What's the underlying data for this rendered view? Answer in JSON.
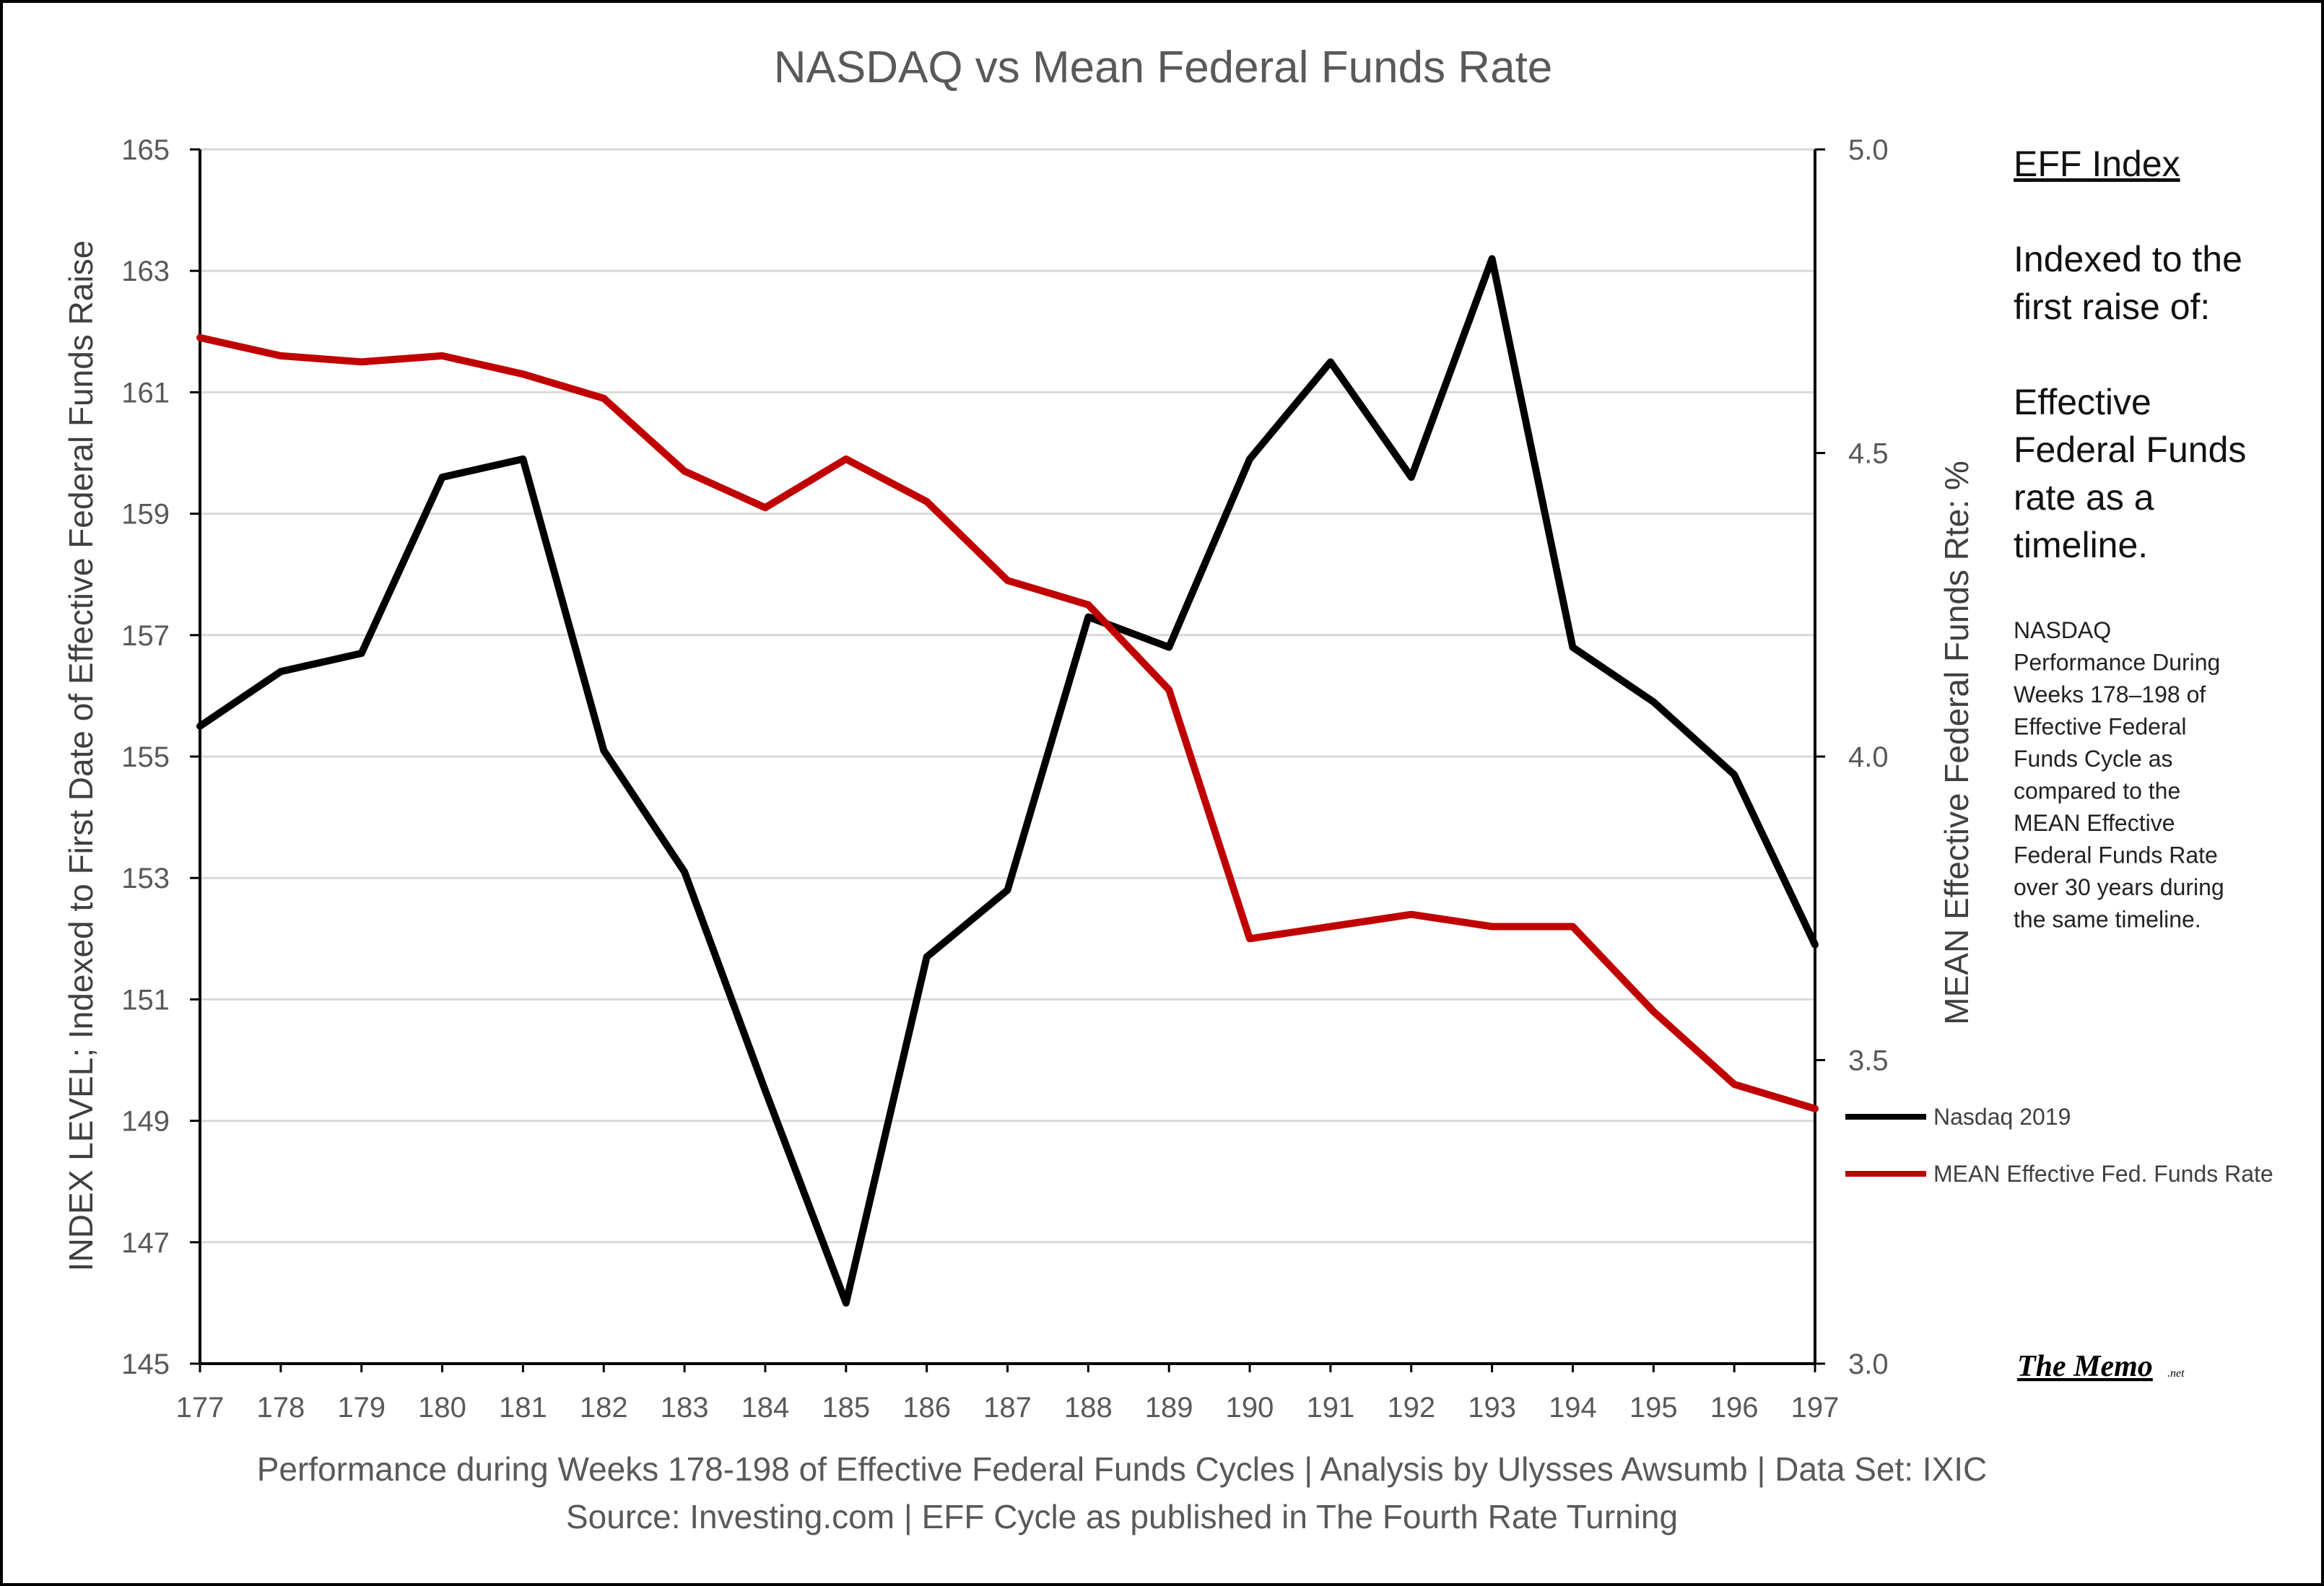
{
  "chart_data": {
    "type": "line",
    "title": "NASDAQ vs Mean Federal Funds Rate",
    "xlabel": "Performance during Weeks 178-198 of Effective Federal Funds Cycles  |  Analysis  by Ulysses Awsumb  |  Data Set: IXIC",
    "xlabel2": "Source: Investing.com  |  EFF Cycle as published in The Fourth Rate Turning",
    "ylabel_left": "INDEX LEVEL; Indexed to First Date of Effective Federal Funds Raise",
    "ylabel_right": "MEAN Effective Federal Funds Rte: %",
    "x": [
      177,
      178,
      179,
      180,
      181,
      182,
      183,
      184,
      185,
      186,
      187,
      188,
      189,
      190,
      191,
      192,
      193,
      194,
      195,
      196,
      197
    ],
    "x_tick_labels": [
      "177",
      "178",
      "179",
      "180",
      "181",
      "182",
      "183",
      "184",
      "185",
      "186",
      "187",
      "188",
      "189",
      "190",
      "191",
      "192",
      "193",
      "194",
      "195",
      "196",
      "197"
    ],
    "ylim_left": [
      145,
      165
    ],
    "y_left_tick_labels": [
      "145",
      "147",
      "149",
      "151",
      "153",
      "155",
      "157",
      "159",
      "161",
      "163",
      "165"
    ],
    "y_left_ticks": [
      145,
      147,
      149,
      151,
      153,
      155,
      157,
      159,
      161,
      163,
      165
    ],
    "ylim_right": [
      3.0,
      5.0
    ],
    "y_right_tick_labels": [
      "3.0",
      "3.5",
      "4.0",
      "4.5",
      "5.0"
    ],
    "y_right_ticks": [
      3.0,
      3.5,
      4.0,
      4.5,
      5.0
    ],
    "grid": true,
    "legend_position": "right",
    "series": [
      {
        "name": "Nasdaq 2019",
        "axis": "left",
        "color": "#000000",
        "values": [
          155.5,
          156.4,
          156.7,
          159.6,
          159.9,
          155.1,
          153.1,
          149.5,
          146.0,
          151.7,
          152.8,
          157.3,
          156.8,
          159.9,
          161.5,
          159.6,
          163.2,
          156.8,
          155.9,
          154.7,
          151.9
        ]
      },
      {
        "name": "MEAN Effective Fed. Funds Rate",
        "axis": "right",
        "color": "#C00000",
        "values": [
          4.69,
          4.66,
          4.65,
          4.66,
          4.63,
          4.59,
          4.47,
          4.41,
          4.49,
          4.42,
          4.29,
          4.25,
          4.11,
          3.7,
          3.72,
          3.74,
          3.72,
          3.72,
          3.58,
          3.46,
          3.42
        ]
      }
    ]
  },
  "side_panel": {
    "heading": "EFF Index",
    "indexed_lines": [
      "Indexed to the",
      "first raise of:"
    ],
    "eff_lines": [
      "Effective",
      "Federal Funds",
      "rate as a",
      "timeline."
    ],
    "note_lines": [
      "NASDAQ",
      "Performance During",
      "Weeks 178–198 of",
      "Effective Federal",
      "Funds Cycle as",
      "compared to the",
      "MEAN Effective",
      "Federal Funds Rate",
      "over 30 years during",
      "the same timeline."
    ]
  },
  "logo": {
    "text": "The Memo",
    "suffix": ".net"
  }
}
